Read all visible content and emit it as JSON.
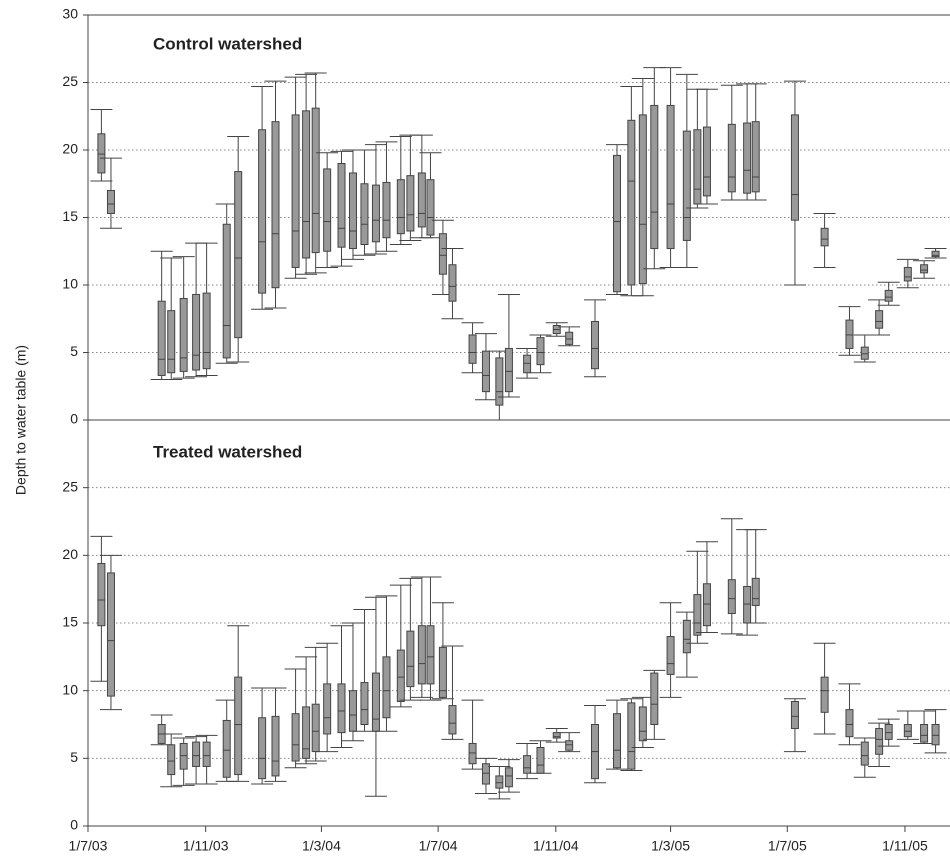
{
  "chart_data": [
    {
      "type": "box",
      "title": "Control watershed",
      "ylabel": "Depth to water table (m)",
      "x": [
        "2003-07-15",
        "2003-07-25",
        "2003-09-16",
        "2003-09-26",
        "2003-10-09",
        "2003-10-22",
        "2003-11-02",
        "2003-11-23",
        "2003-12-05",
        "2003-12-30",
        "2004-01-13",
        "2004-02-03",
        "2004-02-14",
        "2004-02-24",
        "2004-03-07",
        "2004-03-22",
        "2004-04-03",
        "2004-04-15",
        "2004-04-27",
        "2004-05-08",
        "2004-05-23",
        "2004-06-02",
        "2004-06-14",
        "2004-06-23",
        "2004-07-06",
        "2004-07-16",
        "2004-08-06",
        "2004-08-20",
        "2004-09-03",
        "2004-09-13",
        "2004-10-02",
        "2004-10-16",
        "2004-11-02",
        "2004-11-15",
        "2004-12-12",
        "2005-01-04",
        "2005-01-19",
        "2005-01-31",
        "2005-02-12",
        "2005-03-01",
        "2005-03-18",
        "2005-03-29",
        "2005-04-08",
        "2005-05-04",
        "2005-05-20",
        "2005-05-29",
        "2005-07-09",
        "2005-08-09",
        "2005-09-04",
        "2005-09-20",
        "2005-10-05",
        "2005-10-15",
        "2005-11-04",
        "2005-11-21",
        "2005-12-03"
      ],
      "min": [
        17.7,
        14.2,
        3,
        3,
        3.1,
        3.2,
        3.3,
        4.2,
        4.3,
        8.2,
        8.3,
        10.5,
        10.8,
        10.9,
        11.3,
        11.4,
        11.9,
        12.2,
        12.3,
        12.5,
        13,
        13.3,
        13.5,
        13.5,
        9.3,
        7.5,
        3.5,
        1.5,
        0,
        1.7,
        3.1,
        3.5,
        6.2,
        5.5,
        3.2,
        9.3,
        9.2,
        9.2,
        11.2,
        11.3,
        11.3,
        15.7,
        16,
        16.3,
        16.3,
        16.3,
        10,
        11.3,
        4.8,
        4.3,
        6.3,
        8.5,
        9.8,
        10.5,
        12
      ],
      "q1": [
        18.3,
        15.3,
        3.3,
        3.5,
        3.6,
        3.7,
        3.8,
        4.6,
        6.1,
        9.4,
        9.8,
        11.3,
        12,
        12.4,
        12.5,
        12.8,
        12.7,
        13,
        13.2,
        13.5,
        13.8,
        14,
        14.3,
        13.7,
        10.8,
        8.8,
        4.2,
        2.1,
        1.1,
        2.1,
        3.5,
        4.1,
        6.4,
        5.6,
        3.8,
        9.5,
        10,
        10.1,
        12.7,
        12.7,
        13.3,
        16,
        16.6,
        16.9,
        16.8,
        16.9,
        14.8,
        12.9,
        5.3,
        4.5,
        6.8,
        8.8,
        10.3,
        10.9,
        12.1
      ],
      "median": [
        19.7,
        16,
        4.5,
        4.5,
        4.6,
        4.8,
        5,
        7,
        12,
        13.2,
        13.8,
        14,
        14.7,
        15.3,
        14.7,
        14.2,
        14,
        14.5,
        14.8,
        14.8,
        15,
        15.2,
        15.3,
        15,
        12.2,
        9.9,
        5,
        3.3,
        2.1,
        3.6,
        4.2,
        5,
        6.7,
        6,
        5.3,
        14.7,
        17.7,
        14.5,
        15.4,
        16,
        15,
        17.1,
        18,
        18,
        18.5,
        18,
        16.7,
        13.4,
        6.3,
        4.9,
        7.3,
        9.1,
        10.6,
        11.1,
        12.2
      ],
      "q3": [
        21.2,
        17,
        8.8,
        8.1,
        9,
        9.3,
        9.4,
        14.5,
        18.4,
        21.5,
        22.1,
        22.6,
        22.9,
        23.1,
        18.6,
        19,
        18.3,
        17.5,
        17.4,
        17.6,
        17.8,
        18.1,
        18.3,
        17.8,
        13.8,
        11.5,
        6.3,
        5.1,
        4.6,
        5.3,
        4.8,
        6.1,
        7,
        6.5,
        7.3,
        19.6,
        22.2,
        22.6,
        23.3,
        23.3,
        21.4,
        21.5,
        21.7,
        21.9,
        22,
        22.1,
        22.6,
        14.2,
        7.4,
        5.4,
        8.1,
        9.6,
        11.3,
        11.5,
        12.5
      ],
      "max": [
        23,
        19.4,
        12.5,
        12,
        12.1,
        13.1,
        13.1,
        16,
        21,
        24.7,
        25.1,
        25.4,
        25.6,
        25.7,
        19.8,
        19.9,
        20,
        20,
        20.4,
        20.6,
        21,
        21.1,
        21.1,
        19.8,
        14.8,
        12.7,
        7.2,
        6.4,
        5.1,
        9.3,
        5.3,
        6.3,
        7.2,
        6.9,
        8.9,
        20.4,
        24.7,
        25.3,
        26.1,
        26.1,
        25.6,
        24.5,
        24.5,
        24.8,
        24.9,
        24.9,
        25.1,
        15.3,
        8.4,
        6.3,
        8.9,
        10.2,
        11.9,
        11.8,
        12.7
      ],
      "color": "#999999",
      "ylim": [
        0,
        30
      ],
      "yticks": [
        0,
        5,
        10,
        15,
        20,
        25,
        30
      ],
      "grid": true,
      "xlim": [
        "2003-07-01",
        "2005-12-16"
      ]
    },
    {
      "type": "box",
      "title": "Treated watershed",
      "x": [
        "2003-07-15",
        "2003-07-25",
        "2003-09-16",
        "2003-09-26",
        "2003-10-09",
        "2003-10-22",
        "2003-11-02",
        "2003-11-23",
        "2003-12-05",
        "2003-12-30",
        "2004-01-13",
        "2004-02-03",
        "2004-02-14",
        "2004-02-24",
        "2004-03-07",
        "2004-03-22",
        "2004-04-03",
        "2004-04-15",
        "2004-04-27",
        "2004-05-08",
        "2004-05-23",
        "2004-06-02",
        "2004-06-14",
        "2004-06-23",
        "2004-07-06",
        "2004-07-16",
        "2004-08-06",
        "2004-08-20",
        "2004-09-03",
        "2004-09-13",
        "2004-10-02",
        "2004-10-16",
        "2004-11-02",
        "2004-11-15",
        "2004-12-12",
        "2005-01-04",
        "2005-01-19",
        "2005-01-31",
        "2005-02-12",
        "2005-03-01",
        "2005-03-18",
        "2005-03-29",
        "2005-04-08",
        "2005-05-04",
        "2005-05-20",
        "2005-05-29",
        "2005-07-09",
        "2005-08-09",
        "2005-09-04",
        "2005-09-20",
        "2005-10-05",
        "2005-10-15",
        "2005-11-04",
        "2005-11-21",
        "2005-12-03"
      ],
      "min": [
        10.7,
        8.6,
        6,
        2.9,
        3,
        3.1,
        3.1,
        3.3,
        3.3,
        3.1,
        3.3,
        4.3,
        4.6,
        4.8,
        5.5,
        5.8,
        6.3,
        7,
        2.2,
        7,
        8.8,
        9.3,
        9.5,
        9.3,
        9.4,
        6.4,
        4.2,
        2.4,
        2,
        2.5,
        3.5,
        3.9,
        6.2,
        5.5,
        3.2,
        4.2,
        4.1,
        5.8,
        6.4,
        9.5,
        11,
        13.5,
        14.3,
        14.2,
        14.1,
        15,
        5.5,
        6.8,
        6,
        3.6,
        4.4,
        5.9,
        6.4,
        6.1,
        5.4
      ],
      "q1": [
        14.8,
        9.6,
        6.1,
        3.8,
        4.2,
        4.4,
        4.4,
        3.6,
        3.8,
        3.5,
        3.7,
        4.8,
        5,
        5.5,
        6.8,
        6.9,
        7,
        7.5,
        7,
        8,
        9.2,
        10.3,
        10.5,
        10.5,
        9.5,
        6.8,
        4.6,
        3.1,
        2.8,
        2.9,
        3.9,
        3.9,
        6.5,
        5.6,
        3.5,
        4.3,
        4.2,
        6.3,
        7.5,
        11.2,
        12.8,
        14.1,
        14.8,
        15.7,
        15,
        16.3,
        7.2,
        8.4,
        6.6,
        4.5,
        5.3,
        6.4,
        6.6,
        6.2,
        6
      ],
      "median": [
        16.7,
        13.7,
        6.8,
        4.8,
        5.2,
        5.2,
        5.2,
        5.6,
        7.5,
        5,
        4.8,
        6,
        5.7,
        7,
        8,
        8.5,
        8.2,
        8.6,
        7.9,
        10,
        11,
        11.8,
        12,
        12.5,
        10,
        7.6,
        5.4,
        3.9,
        3.2,
        3.7,
        4.3,
        4.5,
        6.6,
        6,
        5.5,
        5.6,
        5.5,
        7,
        9,
        12,
        13.8,
        15,
        16.4,
        16.8,
        16.4,
        16.8,
        8.1,
        10,
        7.5,
        5.2,
        6.4,
        6.9,
        7,
        6.7,
        6.7
      ],
      "q3": [
        19.4,
        18.7,
        7.5,
        6,
        6.1,
        6.2,
        6.2,
        7.8,
        11,
        8,
        8.1,
        8.3,
        8.8,
        9,
        10.5,
        10.5,
        10,
        10.6,
        11.3,
        12.5,
        13,
        14.4,
        14.8,
        14.8,
        13.2,
        8.9,
        6.1,
        4.6,
        3.7,
        4.3,
        5.2,
        5.8,
        6.9,
        6.3,
        7.5,
        8.3,
        9.1,
        8.8,
        11.3,
        14,
        15.2,
        17.1,
        17.9,
        18.2,
        17.7,
        18.3,
        9.2,
        11,
        8.6,
        6.2,
        7.2,
        7.5,
        7.5,
        7.5,
        7.5
      ],
      "max": [
        21.4,
        20,
        8.2,
        6.8,
        6.5,
        6.6,
        6.7,
        9.3,
        14.8,
        10.2,
        10.2,
        11.6,
        12.5,
        13.2,
        13.5,
        14.8,
        15,
        16,
        16.9,
        17,
        17.8,
        18.3,
        18.4,
        18.4,
        16.5,
        13.3,
        9.3,
        5,
        4.4,
        4.9,
        6.1,
        6.3,
        7.2,
        6.9,
        8.9,
        9.3,
        9.4,
        9.5,
        11.5,
        16.5,
        15.8,
        20.3,
        21,
        22.7,
        21.9,
        21.9,
        9.4,
        13.5,
        10.5,
        6.5,
        7.6,
        7.9,
        8.5,
        8.5,
        8.6
      ],
      "color": "#999999",
      "ylim": [
        0,
        30
      ],
      "yticks": [
        0,
        5,
        10,
        15,
        20,
        25
      ],
      "grid": true,
      "xlim": [
        "2003-07-01",
        "2005-12-16"
      ],
      "xticks": [
        {
          "value": "2003-07-01",
          "label": "1/7/03"
        },
        {
          "value": "2003-11-01",
          "label": "1/11/03"
        },
        {
          "value": "2004-03-01",
          "label": "1/3/04"
        },
        {
          "value": "2004-07-01",
          "label": "1/7/04"
        },
        {
          "value": "2004-11-01",
          "label": "1/11/04"
        },
        {
          "value": "2005-03-01",
          "label": "1/3/05"
        },
        {
          "value": "2005-07-01",
          "label": "1/7/05"
        },
        {
          "value": "2005-11-01",
          "label": "1/11/05"
        }
      ]
    }
  ]
}
